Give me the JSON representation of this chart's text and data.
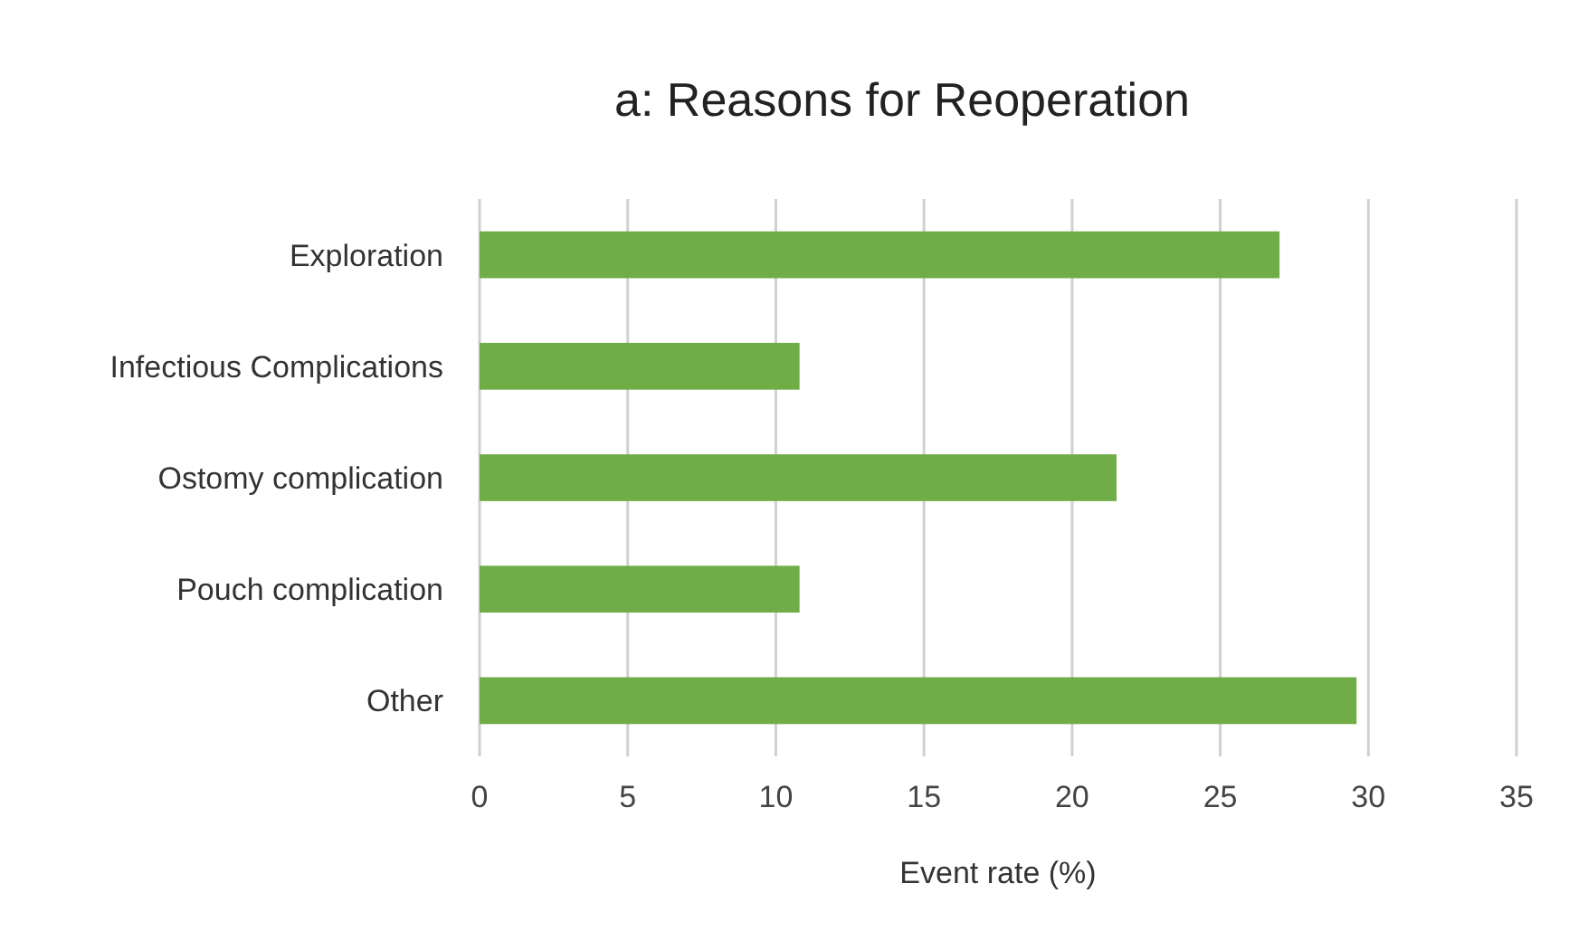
{
  "chart_data": {
    "type": "bar",
    "orientation": "horizontal",
    "title": "a: Reasons for Reoperation",
    "xlabel": "Event rate (%)",
    "categories": [
      "Exploration",
      "Infectious Complications",
      "Ostomy complication",
      "Pouch complication",
      "Other"
    ],
    "values": [
      27,
      10.8,
      21.5,
      10.8,
      29.6
    ],
    "color": "#70ad47",
    "xlim": [
      0,
      35
    ],
    "xticks": [
      0,
      5,
      10,
      15,
      20,
      25,
      30,
      35
    ],
    "grid": "x"
  }
}
